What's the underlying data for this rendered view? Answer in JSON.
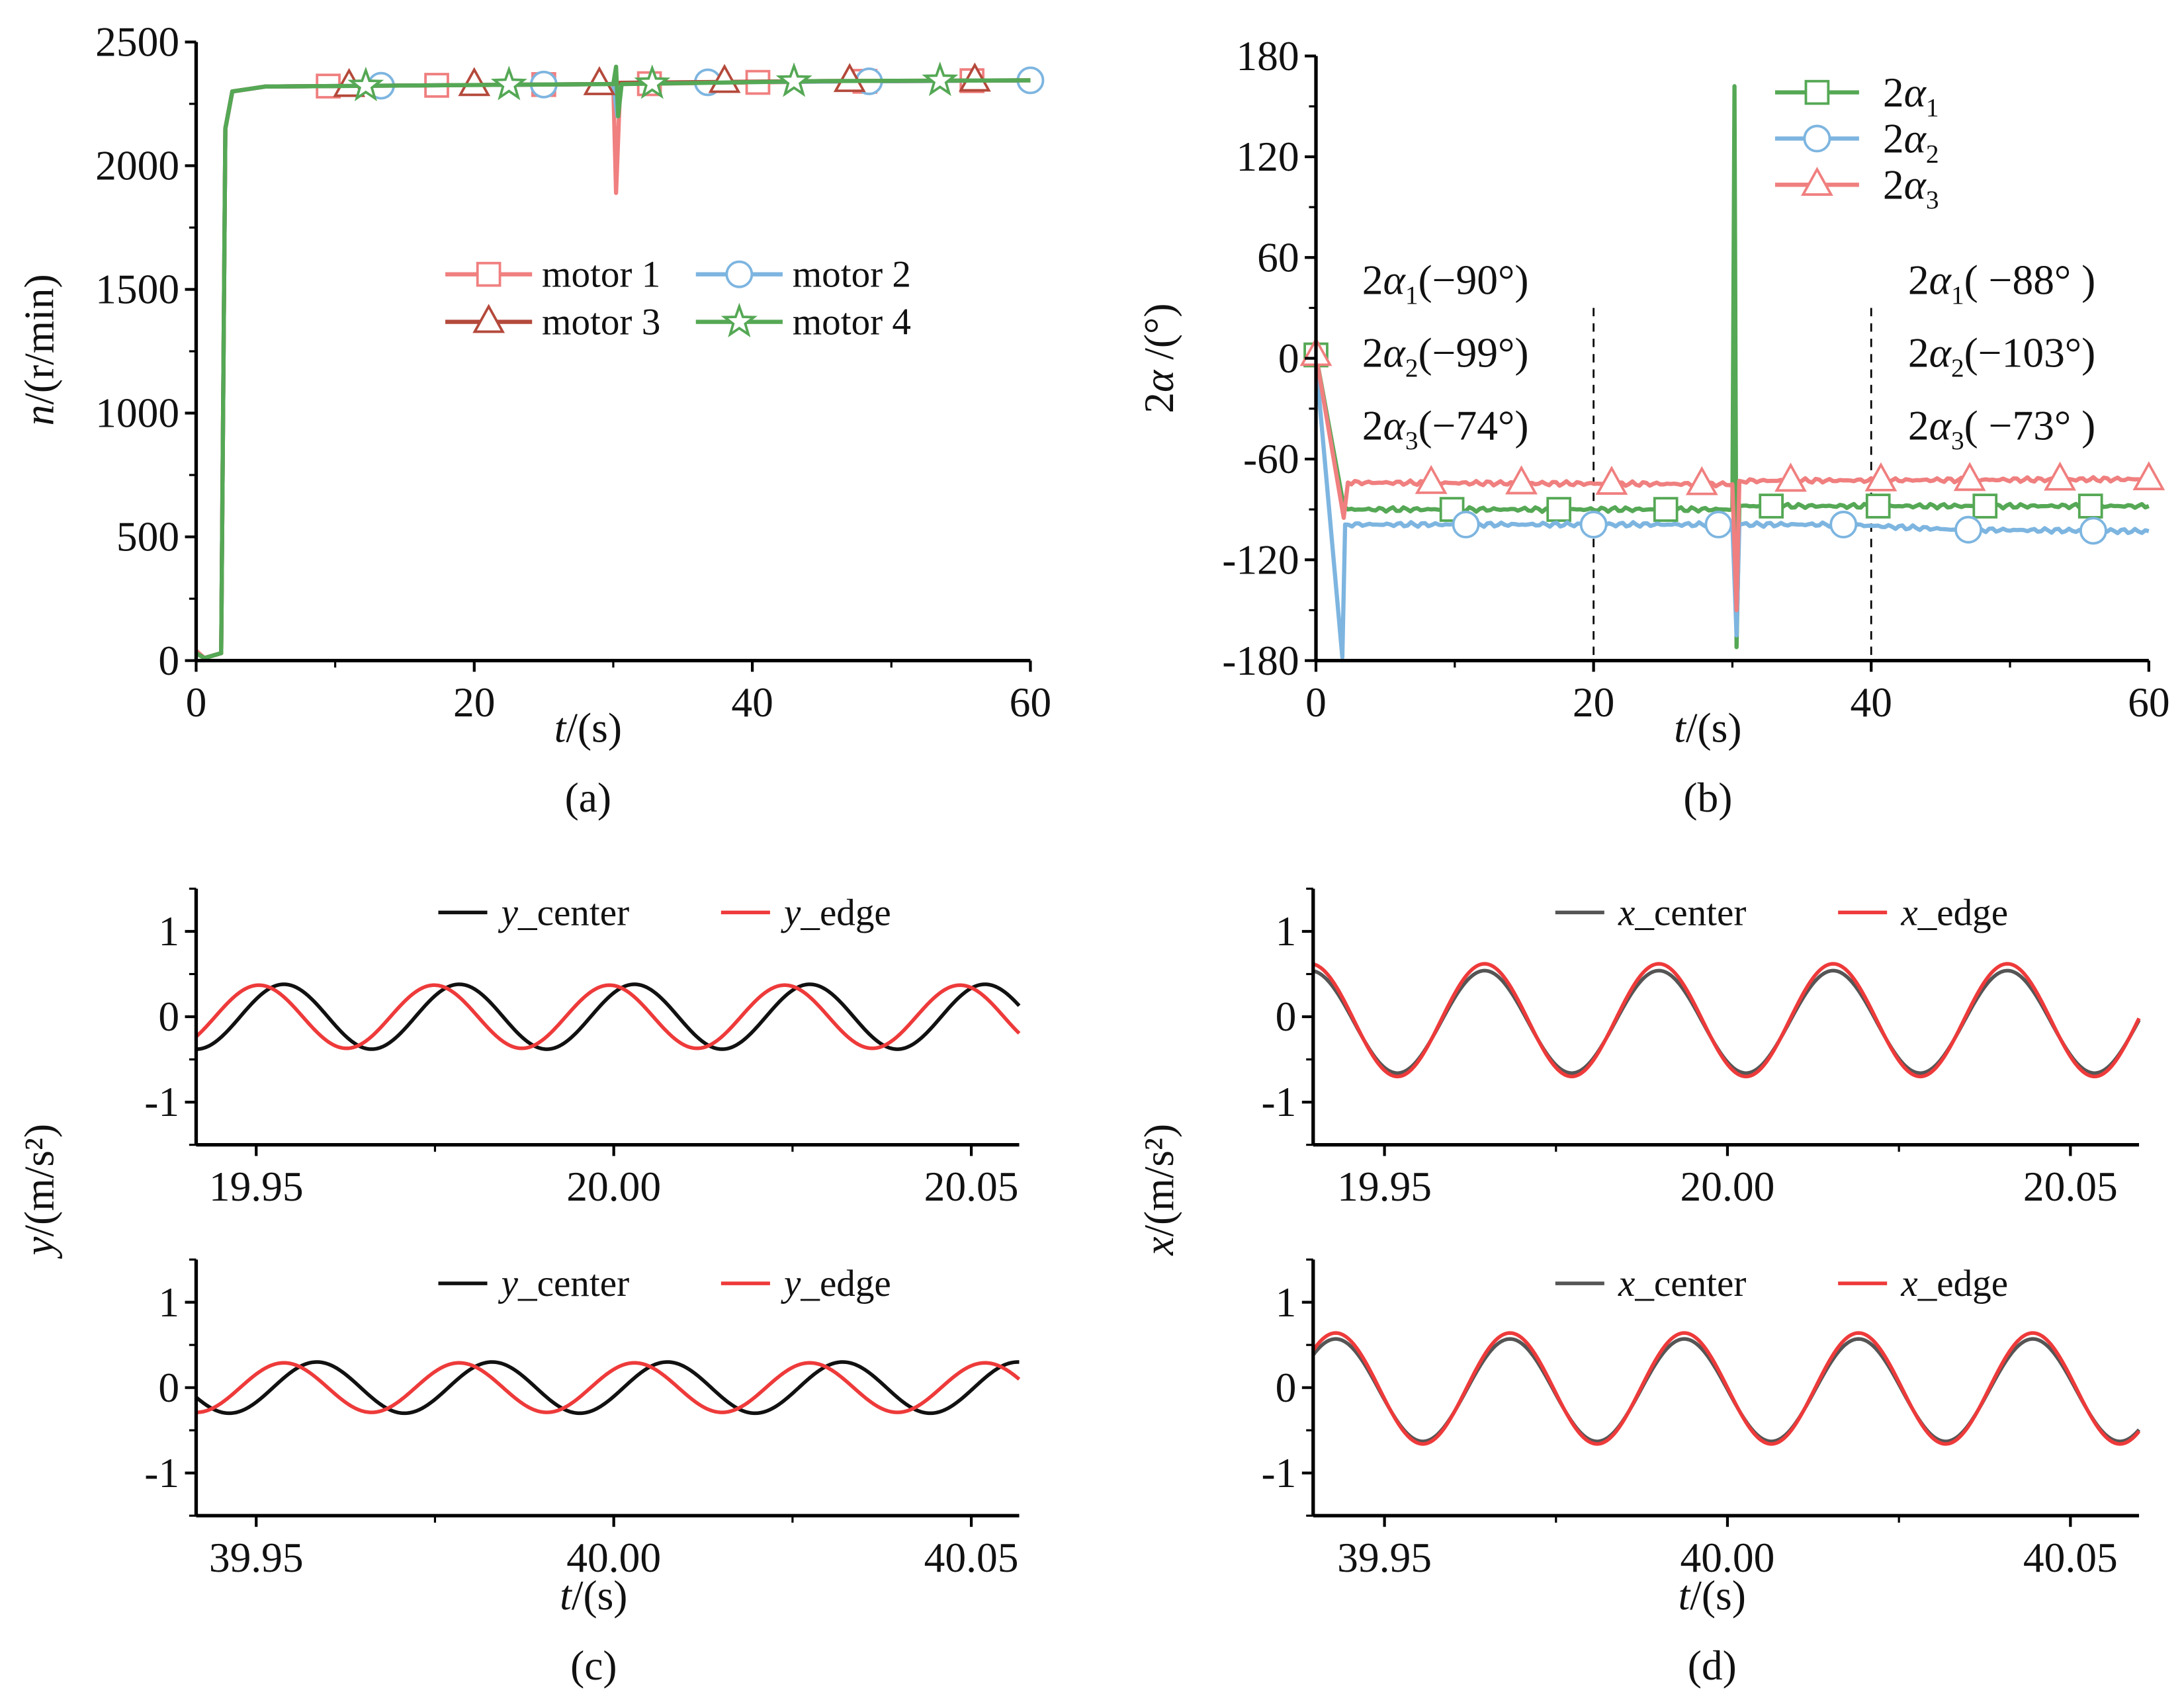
{
  "chart_data": [
    {
      "id": "a",
      "type": "line",
      "caption": "(a)",
      "xlabel": {
        "var": "t",
        "unit": "/(s)"
      },
      "ylabel": {
        "var": "n",
        "unit": "/(r/min)"
      },
      "xlim": [
        0,
        60
      ],
      "ylim": [
        0,
        2500
      ],
      "xticks": [
        0,
        20,
        40,
        60
      ],
      "yticks": [
        0,
        500,
        1000,
        1500,
        2000,
        2500
      ],
      "legend": {
        "placement": "center-right",
        "columns": 2
      },
      "series": [
        {
          "name": "motor 1",
          "color": "#f07f7f",
          "marker": "square",
          "points": [
            [
              0,
              40
            ],
            [
              0.6,
              10
            ],
            [
              1.8,
              30
            ],
            [
              2.1,
              2150
            ],
            [
              2.6,
              2300
            ],
            [
              5,
              2320
            ],
            [
              30,
              2330
            ],
            [
              30.2,
              1890
            ],
            [
              30.5,
              2330
            ],
            [
              45,
              2340
            ],
            [
              60,
              2345
            ]
          ],
          "markers": [
            9.5,
            17.3,
            25,
            32.6,
            40.4,
            48.1,
            55.8
          ]
        },
        {
          "name": "motor 2",
          "color": "#7db5e0",
          "marker": "circle",
          "points": [
            [
              0,
              30
            ],
            [
              0.6,
              10
            ],
            [
              1.8,
              30
            ],
            [
              2.1,
              2150
            ],
            [
              2.6,
              2300
            ],
            [
              5,
              2320
            ],
            [
              30,
              2330
            ],
            [
              30.3,
              2200
            ],
            [
              30.6,
              2335
            ],
            [
              45,
              2340
            ],
            [
              60,
              2345
            ]
          ],
          "markers": [
            13.3,
            25,
            36.8,
            48.4,
            60
          ]
        },
        {
          "name": "motor 3",
          "color": "#b4493b",
          "marker": "triangle",
          "points": [
            [
              0,
              30
            ],
            [
              0.6,
              10
            ],
            [
              1.8,
              30
            ],
            [
              2.1,
              2150
            ],
            [
              2.6,
              2300
            ],
            [
              5,
              2320
            ],
            [
              30,
              2330
            ],
            [
              30.5,
              2335
            ],
            [
              45,
              2342
            ],
            [
              60,
              2345
            ]
          ],
          "markers": [
            11,
            20,
            29,
            38,
            47,
            56
          ]
        },
        {
          "name": "motor 4",
          "color": "#55a855",
          "marker": "star",
          "points": [
            [
              0,
              30
            ],
            [
              0.6,
              10
            ],
            [
              1.8,
              30
            ],
            [
              2.1,
              2150
            ],
            [
              2.6,
              2300
            ],
            [
              5,
              2320
            ],
            [
              30,
              2330
            ],
            [
              30.2,
              2400
            ],
            [
              30.35,
              2200
            ],
            [
              30.6,
              2330
            ],
            [
              45,
              2342
            ],
            [
              60,
              2345
            ]
          ],
          "markers": [
            12.2,
            22.5,
            32.8,
            43,
            53.5
          ]
        }
      ]
    },
    {
      "id": "b",
      "type": "line",
      "caption": "(b)",
      "xlabel": {
        "var": "t",
        "unit": "/(s)"
      },
      "ylabel": {
        "prefix": "2",
        "var": "α",
        "unit": " /(°)"
      },
      "xlim": [
        0,
        60
      ],
      "ylim": [
        -180,
        180
      ],
      "xticks": [
        0,
        20,
        40,
        60
      ],
      "yticks": [
        -180,
        -120,
        -60,
        0,
        60,
        120,
        180
      ],
      "legend": {
        "placement": "top-right",
        "columns": 1
      },
      "vlines": [
        20,
        40
      ],
      "series": [
        {
          "name": {
            "prefix": "2",
            "sym": "α",
            "sub": "1"
          },
          "color": "#55a855",
          "marker": "square",
          "points": [
            [
              0,
              2
            ],
            [
              2,
              -88
            ],
            [
              2.3,
              -90
            ],
            [
              30,
              -90
            ],
            [
              30.15,
              162
            ],
            [
              30.3,
              -172
            ],
            [
              30.5,
              -88
            ],
            [
              60,
              -88
            ]
          ],
          "markers": [
            0,
            9.8,
            17.5,
            25.2,
            32.8,
            40.5,
            48.2,
            55.8
          ]
        },
        {
          "name": {
            "prefix": "2",
            "sym": "α",
            "sub": "2"
          },
          "color": "#7db5e0",
          "marker": "circle",
          "points": [
            [
              0,
              -2
            ],
            [
              1.9,
              -178
            ],
            [
              2.1,
              -99
            ],
            [
              30,
              -99
            ],
            [
              30.3,
              -165
            ],
            [
              30.5,
              -99
            ],
            [
              38,
              -99
            ],
            [
              46,
              -102
            ],
            [
              60,
              -103
            ]
          ],
          "markers": [
            10.8,
            20,
            29,
            38,
            47,
            56
          ]
        },
        {
          "name": {
            "prefix": "2",
            "sym": "α",
            "sub": "3"
          },
          "color": "#f07f7f",
          "marker": "triangle",
          "points": [
            [
              0,
              2
            ],
            [
              2,
              -95
            ],
            [
              2.3,
              -74
            ],
            [
              30,
              -75
            ],
            [
              30.3,
              -150
            ],
            [
              30.5,
              -73
            ],
            [
              60,
              -72
            ]
          ],
          "markers": [
            0,
            8.3,
            14.8,
            21.3,
            27.8,
            34.2,
            40.7,
            47.1,
            53.6,
            60
          ]
        }
      ],
      "annotations": [
        {
          "group": "left",
          "prefix": "2",
          "sym": "α",
          "sub": "1",
          "value": "(−90°)"
        },
        {
          "group": "left",
          "prefix": "2",
          "sym": "α",
          "sub": "2",
          "value": "(−99°)"
        },
        {
          "group": "left",
          "prefix": "2",
          "sym": "α",
          "sub": "3",
          "value": "(−74°)"
        },
        {
          "group": "right",
          "prefix": "2",
          "sym": "α",
          "sub": "1",
          "value": "( −88° )"
        },
        {
          "group": "right",
          "prefix": "2",
          "sym": "α",
          "sub": "2",
          "value": "(−103°)"
        },
        {
          "group": "right",
          "prefix": "2",
          "sym": "α",
          "sub": "3",
          "value": "( −73° )"
        }
      ]
    },
    {
      "id": "c",
      "type": "line",
      "caption": "(c)",
      "xlabel": {
        "var": "t",
        "unit": "/(s)"
      },
      "ylabel": {
        "var": "y",
        "unit": "/(m/s²)"
      },
      "subplots": [
        {
          "xlim": [
            19.9416,
            20.0567
          ],
          "ylim": [
            -1.5,
            1.5
          ],
          "xticks": [
            19.95,
            20.0,
            20.05
          ],
          "yticks": [
            -1,
            0,
            1
          ],
          "series": [
            {
              "name": {
                "var": "y",
                "suffix": "_center"
              },
              "color": "#111111",
              "model": "cosine",
              "amplitude": 0.38,
              "offset": 0,
              "frequency_hz": 40.8,
              "peak_t": 20.0029
            },
            {
              "name": {
                "var": "y",
                "suffix": "_edge"
              },
              "color": "#ee3a3a",
              "model": "cosine",
              "amplitude": 0.37,
              "offset": 0,
              "frequency_hz": 40.8,
              "peak_t": 19.9994
            }
          ]
        },
        {
          "xlim": [
            39.9416,
            40.0567
          ],
          "ylim": [
            -1.5,
            1.5
          ],
          "xticks": [
            39.95,
            40.0,
            40.05
          ],
          "yticks": [
            -1,
            0,
            1
          ],
          "series": [
            {
              "name": {
                "var": "y",
                "suffix": "_center"
              },
              "color": "#111111",
              "model": "cosine",
              "amplitude": 0.3,
              "offset": 0,
              "frequency_hz": 40.8,
              "peak_t": 40.0075
            },
            {
              "name": {
                "var": "y",
                "suffix": "_edge"
              },
              "color": "#ee3a3a",
              "model": "cosine",
              "amplitude": 0.29,
              "offset": 0,
              "frequency_hz": 40.8,
              "peak_t": 40.0029
            }
          ]
        }
      ]
    },
    {
      "id": "d",
      "type": "line",
      "caption": "(d)",
      "xlabel": {
        "var": "t",
        "unit": "/(s)"
      },
      "ylabel": {
        "var": "x",
        "unit": "/(m/s²)"
      },
      "subplots": [
        {
          "xlim": [
            19.9396,
            20.06
          ],
          "ylim": [
            -1.5,
            1.5
          ],
          "xticks": [
            19.95,
            20.0,
            20.05
          ],
          "yticks": [
            -1,
            0,
            1
          ],
          "series": [
            {
              "name": {
                "var": "x",
                "suffix": "_center"
              },
              "color": "#555555",
              "model": "cosine",
              "amplitude": 0.6,
              "offset": -0.06,
              "frequency_hz": 39.36,
              "peak_t": 19.99
            },
            {
              "name": {
                "var": "x",
                "suffix": "_edge"
              },
              "color": "#ee3a3a",
              "model": "cosine",
              "amplitude": 0.66,
              "offset": -0.04,
              "frequency_hz": 39.36,
              "peak_t": 19.99
            }
          ]
        },
        {
          "xlim": [
            39.9396,
            40.06
          ],
          "ylim": [
            -1.5,
            1.5
          ],
          "xticks": [
            39.95,
            40.0,
            40.05
          ],
          "yticks": [
            -1,
            0,
            1
          ],
          "series": [
            {
              "name": {
                "var": "x",
                "suffix": "_center"
              },
              "color": "#555555",
              "model": "cosine",
              "amplitude": 0.6,
              "offset": -0.03,
              "frequency_hz": 39.36,
              "peak_t": 39.9937
            },
            {
              "name": {
                "var": "x",
                "suffix": "_edge"
              },
              "color": "#ee3a3a",
              "model": "cosine",
              "amplitude": 0.65,
              "offset": -0.01,
              "frequency_hz": 39.36,
              "peak_t": 39.9937
            }
          ]
        }
      ]
    }
  ]
}
